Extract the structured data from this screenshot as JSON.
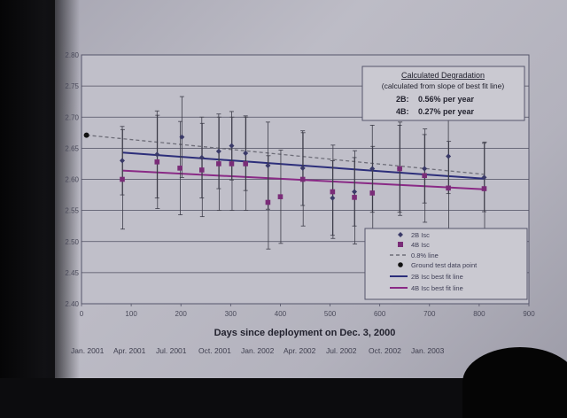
{
  "chart_data": {
    "type": "scatter",
    "title": "",
    "xlabel": "Days since deployment on Dec. 3, 2000",
    "ylabel": "",
    "xlim": [
      0,
      900
    ],
    "ylim": [
      2.4,
      2.8
    ],
    "x_ticks": [
      "0",
      "100",
      "200",
      "300",
      "400",
      "500",
      "600",
      "700",
      "800",
      "900"
    ],
    "y_ticks": [
      "2.40",
      "2.45",
      "2.50",
      "2.55",
      "2.60",
      "2.65",
      "2.70",
      "2.75",
      "2.80"
    ],
    "grid": true,
    "legend_position": "bottom-right",
    "date_labels": [
      "Jan. 2001",
      "Apr. 2001",
      "Jul. 2001",
      "Oct. 2001",
      "Jan. 2002",
      "Apr. 2002",
      "Jul. 2002",
      "Oct. 2002",
      "Jan. 2003"
    ],
    "annotation": {
      "title": "Calculated Degradation",
      "subtitle": "(calculated from slope of best fit line)",
      "rates": [
        {
          "label": "2B:",
          "value": "0.56% per year"
        },
        {
          "label": "4B:",
          "value": "0.27% per year"
        }
      ]
    },
    "legend": [
      "2B Isc",
      "4B Isc",
      "0.8% line",
      "Ground test data point",
      "2B Isc best fit line",
      "4B Isc best fit line"
    ],
    "series": [
      {
        "name": "2B Isc",
        "color": "#3a3a68",
        "x": [
          82,
          152,
          202,
          242,
          276,
          302,
          330,
          375,
          445,
          505,
          549,
          585,
          640,
          690,
          738,
          810
        ],
        "y": [
          2.63,
          2.64,
          2.668,
          2.635,
          2.645,
          2.654,
          2.642,
          2.622,
          2.618,
          2.57,
          2.58,
          2.617,
          2.617,
          2.617,
          2.637,
          2.603
        ],
        "err": [
          0.055,
          0.07,
          0.065,
          0.065,
          0.06,
          0.055,
          0.06,
          0.07,
          0.06,
          0.06,
          0.055,
          0.07,
          0.07,
          0.055,
          0.06,
          0.055
        ]
      },
      {
        "name": "4B Isc",
        "color": "#7a2c78",
        "x": [
          82,
          152,
          198,
          242,
          276,
          302,
          330,
          375,
          400,
          445,
          505,
          549,
          585,
          640,
          690,
          738,
          810
        ],
        "y": [
          2.6,
          2.628,
          2.618,
          2.615,
          2.625,
          2.625,
          2.625,
          2.563,
          2.572,
          2.6,
          2.58,
          2.571,
          2.578,
          2.617,
          2.606,
          2.586,
          2.585
        ],
        "err": [
          0.08,
          0.075,
          0.075,
          0.075,
          0.075,
          0.075,
          0.075,
          0.075,
          0.075,
          0.075,
          0.075,
          0.075,
          0.075,
          0.075,
          0.075,
          0.075,
          0.075
        ]
      },
      {
        "name": "Ground test data point",
        "color": "#111111",
        "x": [
          10
        ],
        "y": [
          2.671
        ]
      },
      {
        "name": "0.8% line",
        "color": "#6d6d78",
        "x": [
          10,
          810
        ],
        "y": [
          2.671,
          2.608
        ]
      },
      {
        "name": "2B Isc best fit line",
        "color": "#2c2e7a",
        "x": [
          82,
          810
        ],
        "y": [
          2.643,
          2.601
        ]
      },
      {
        "name": "4B Isc best fit line",
        "color": "#8a2a86",
        "x": [
          82,
          810
        ],
        "y": [
          2.614,
          2.584
        ]
      }
    ]
  }
}
